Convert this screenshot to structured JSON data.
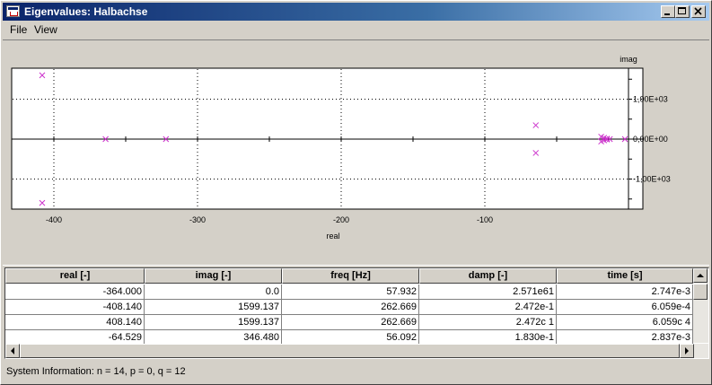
{
  "window": {
    "title": "Eigenvalues: Halbachse"
  },
  "menu": {
    "file": "File",
    "view": "View"
  },
  "plot": {
    "xlabel": "real",
    "ylabel": "imag",
    "xticks": [
      "-400",
      "-300",
      "-200",
      "-100"
    ],
    "yticks": [
      "1,00E+03",
      "0,00E+00",
      "-1,00E+03"
    ],
    "marker_color": "#cc33cc",
    "chart_data": {
      "type": "scatter",
      "xlabel": "real",
      "ylabel": "imag",
      "xlim": [
        -430,
        0
      ],
      "ylim": [
        -1750,
        1750
      ],
      "points": [
        {
          "x": -408.14,
          "y": 1599.137
        },
        {
          "x": -408.14,
          "y": -1599.137
        },
        {
          "x": -364.0,
          "y": 0
        },
        {
          "x": -322.0,
          "y": 0
        },
        {
          "x": -64.529,
          "y": 346.48
        },
        {
          "x": -64.529,
          "y": -346.48
        },
        {
          "x": -19,
          "y": 60
        },
        {
          "x": -19,
          "y": -60
        },
        {
          "x": -17,
          "y": 30
        },
        {
          "x": -17,
          "y": -30
        },
        {
          "x": -15,
          "y": 10
        },
        {
          "x": -15,
          "y": -10
        },
        {
          "x": -13,
          "y": 0
        },
        {
          "x": -2.5,
          "y": 0
        }
      ]
    }
  },
  "table": {
    "columns": [
      "real [-]",
      "imag [-]",
      "freq [Hz]",
      "damp [-]",
      "time [s]"
    ],
    "rows": [
      [
        "-364.000",
        "0.0",
        "57.932",
        "2.571e61",
        "2.747e-3"
      ],
      [
        "-408.140",
        "1599.137",
        "262.669",
        "2.472e-1",
        "6.059e-4"
      ],
      [
        "408.140",
        "1599.137",
        "262.669",
        "2.472c 1",
        "6.059c 4"
      ],
      [
        "-64.529",
        "346.480",
        "56.092",
        "1.830e-1",
        "2.837e-3"
      ]
    ]
  },
  "status": {
    "text": "System Information: n = 14, p = 0, q = 12"
  }
}
